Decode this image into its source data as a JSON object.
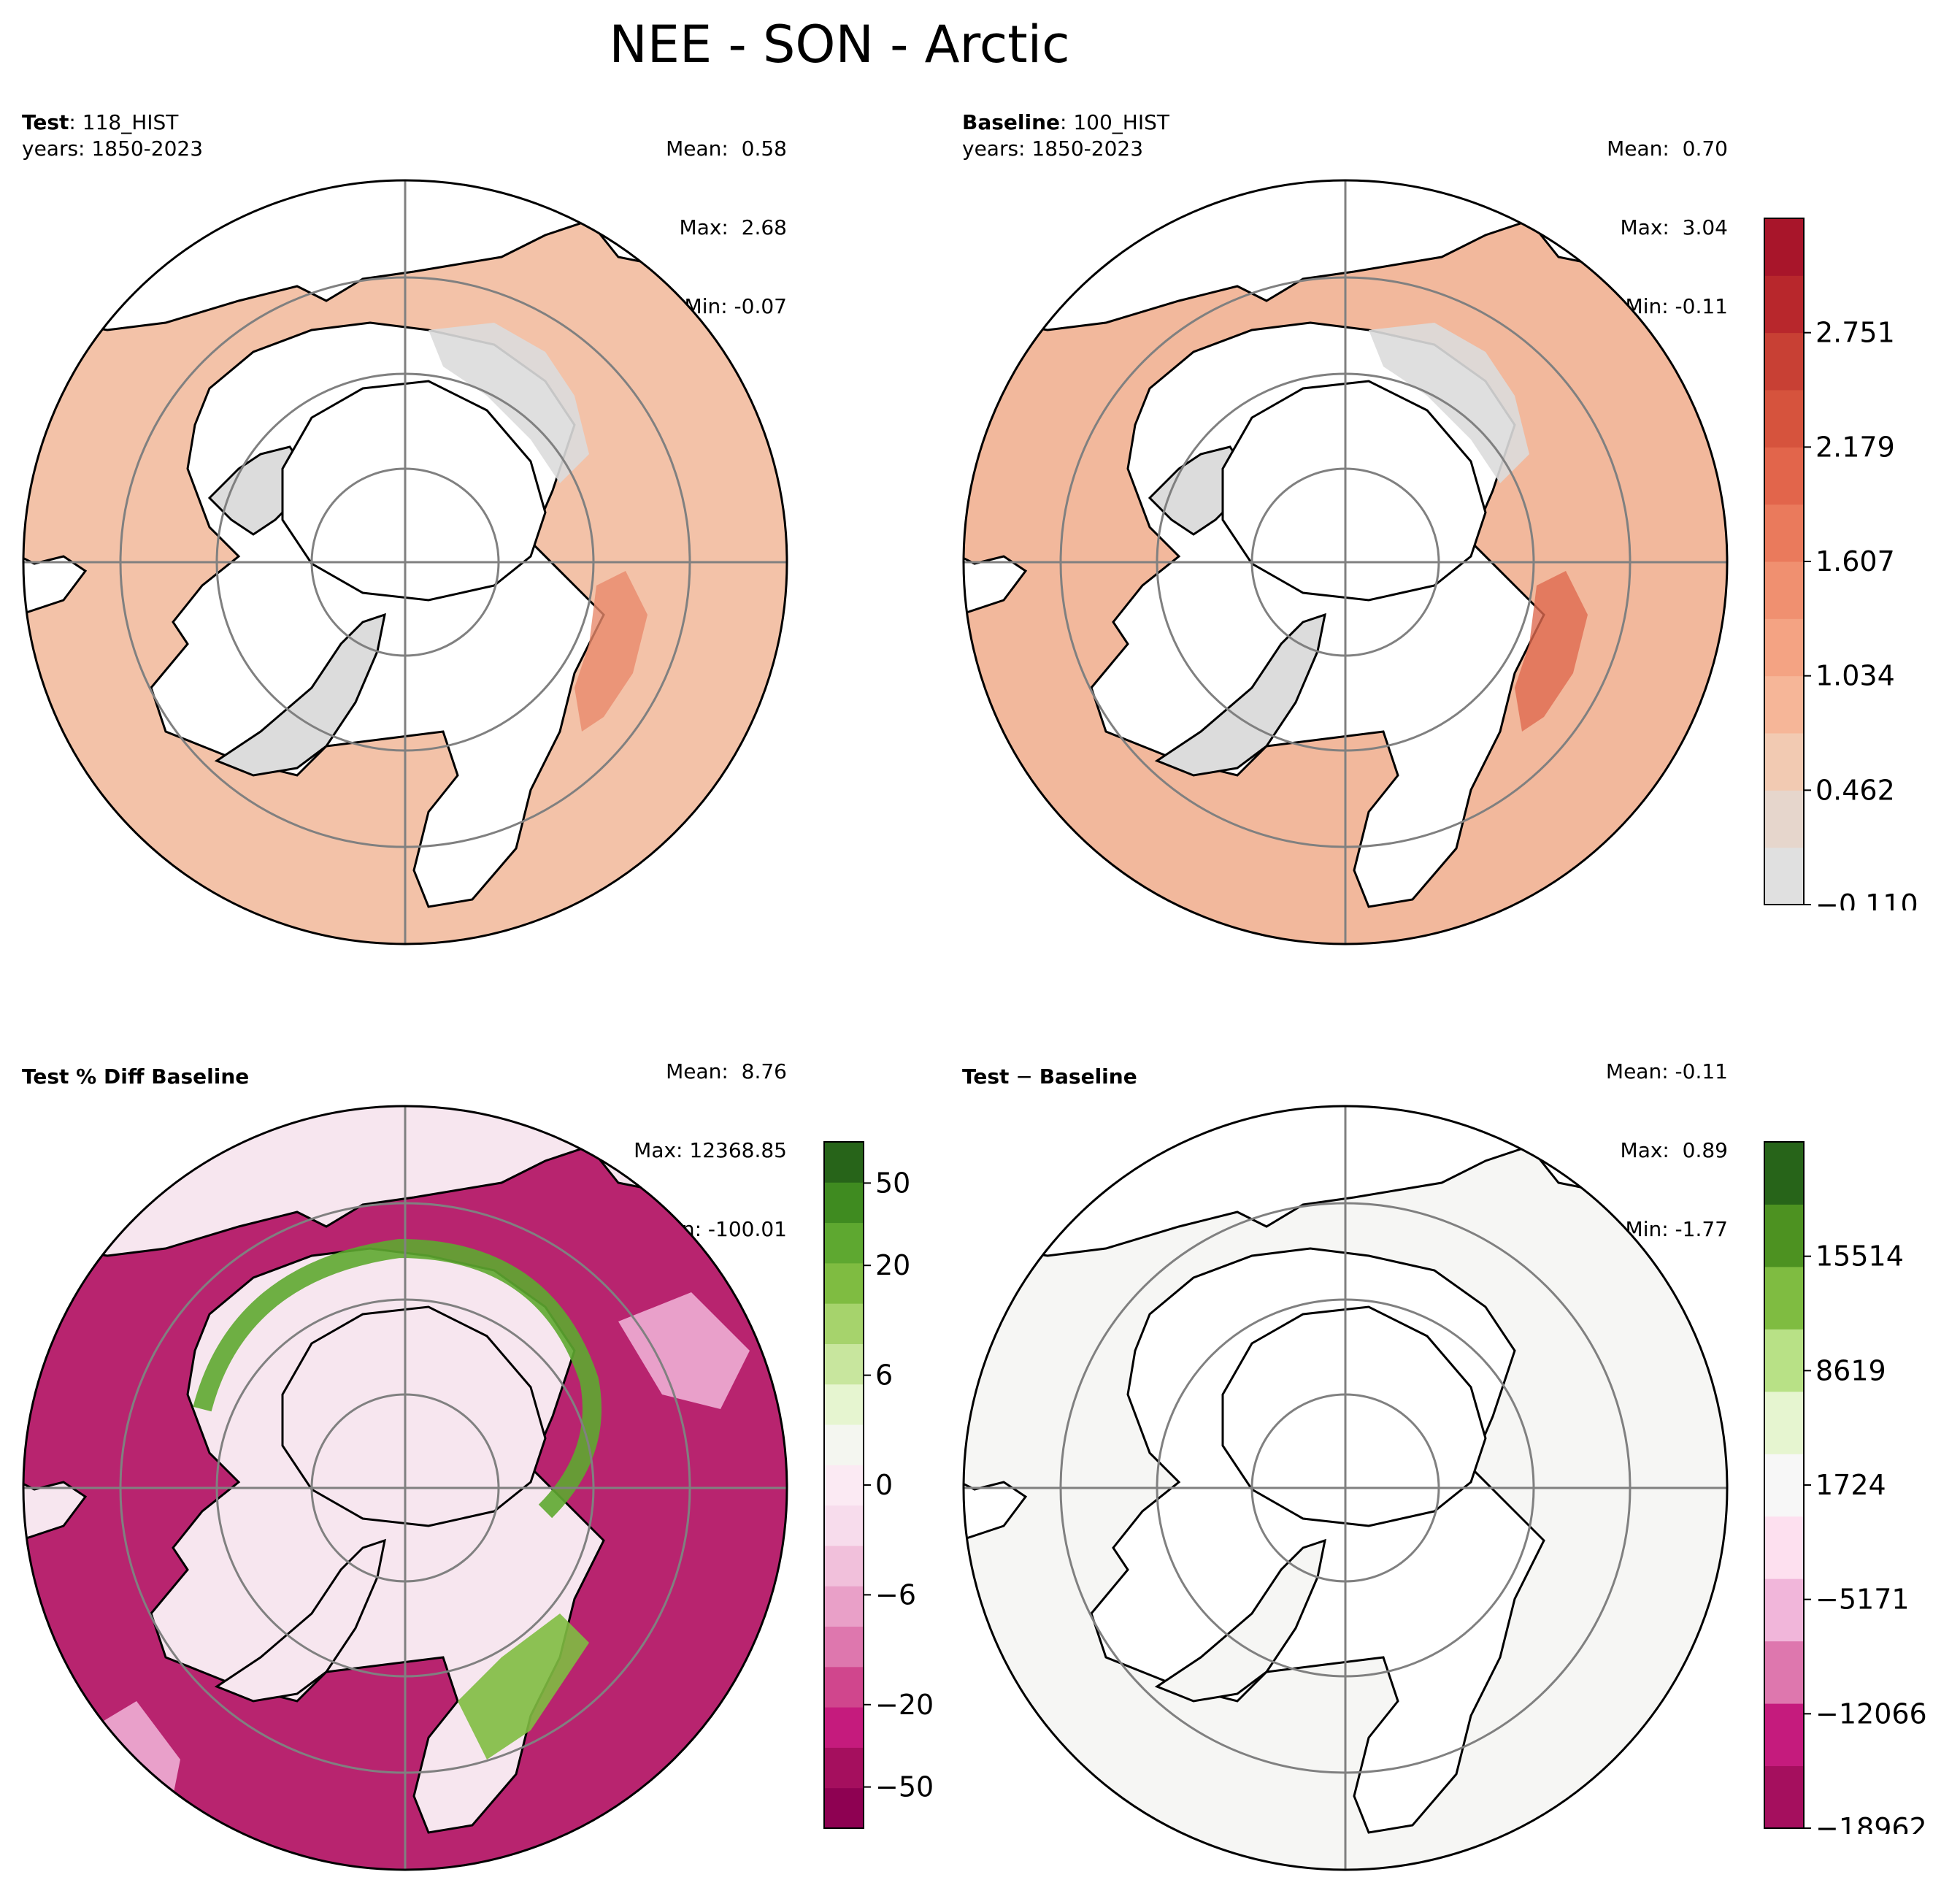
{
  "title": "NEE - SON - Arctic",
  "panels": {
    "test": {
      "label": "Test",
      "case": "118_HIST",
      "years": "years: 1850-2023",
      "mean": "Mean:  0.58",
      "max": "Max:  2.68",
      "min": "Min: -0.07"
    },
    "baseline": {
      "label": "Baseline",
      "case": "100_HIST",
      "years": "years: 1850-2023",
      "mean": "Mean:  0.70",
      "max": "Max:  3.04",
      "min": "Min: -0.11"
    },
    "pctdiff": {
      "label": "Test % Diff Baseline",
      "mean": "Mean:  8.76",
      "max": "Max: 12368.85",
      "min": "Min: -100.01"
    },
    "diff": {
      "label_a": "Test",
      "label_sep": " − ",
      "label_b": "Baseline",
      "mean": "Mean: -0.11",
      "max": "Max:  0.89",
      "min": "Min: -1.77"
    }
  },
  "colorbars": {
    "main": {
      "ticks": [
        "−0.110",
        "0.462",
        "1.034",
        "1.607",
        "2.179",
        "2.751"
      ],
      "colors": [
        "#e0e0e0",
        "#e6d6cc",
        "#f2cab2",
        "#f6b698",
        "#f4a383",
        "#f09070",
        "#ea7a5c",
        "#e2654b",
        "#d6533d",
        "#c84034",
        "#b8272c",
        "#a8152a"
      ]
    },
    "pctdiff": {
      "ticks": [
        "−50",
        "−20",
        "−6",
        "0",
        "6",
        "20",
        "50"
      ],
      "colors": [
        "#8e0152",
        "#a50f5e",
        "#c51b7d",
        "#d0468d",
        "#de77ae",
        "#e9a0c8",
        "#f1c0db",
        "#f7dcec",
        "#fbeaf3",
        "#f4f6f0",
        "#e6f5d0",
        "#c8e69e",
        "#a6d36c",
        "#7fbc41",
        "#5ea830",
        "#3f8b20",
        "#276419"
      ]
    },
    "diff": {
      "ticks": [
        "−18962",
        "−12066",
        "−5171",
        "1724",
        "8619",
        "15514"
      ],
      "colors": [
        "#a50f5e",
        "#c51b7d",
        "#de77ae",
        "#f1b6da",
        "#fde0ef",
        "#f7f7f7",
        "#e6f5d0",
        "#b8e186",
        "#7fbc41",
        "#4d9221",
        "#276419"
      ]
    }
  }
}
